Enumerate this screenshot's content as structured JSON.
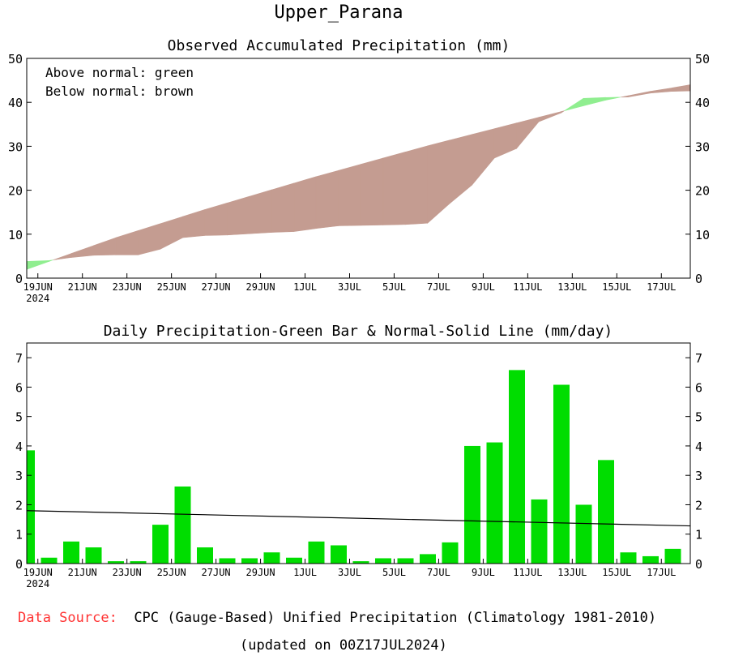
{
  "page_title": "Upper_Parana",
  "footer": {
    "source_label": "Data Source:",
    "source_text": "CPC (Gauge-Based) Unified Precipitation (Climatology 1981-2010)",
    "updated": "(updated on 00Z17JUL2024)"
  },
  "colors": {
    "above": "#90ee90",
    "below": "#c49c91",
    "bar": "#00dd00",
    "source_label": "#ff3333"
  },
  "chart_data": [
    {
      "type": "area",
      "title": "Observed Accumulated Precipitation (mm)",
      "legend_note": [
        "Above normal: green",
        "Below normal: brown"
      ],
      "ylim": [
        0,
        50
      ],
      "yticks": [
        0,
        10,
        20,
        30,
        40,
        50
      ],
      "xlim": [
        0,
        29.8
      ],
      "x_ticks": [
        {
          "x": 0.5,
          "label": "19JUN",
          "sub": "2024"
        },
        {
          "x": 2.5,
          "label": "21JUN"
        },
        {
          "x": 4.5,
          "label": "23JUN"
        },
        {
          "x": 6.5,
          "label": "25JUN"
        },
        {
          "x": 8.5,
          "label": "27JUN"
        },
        {
          "x": 10.5,
          "label": "29JUN"
        },
        {
          "x": 12.5,
          "label": "1JUL"
        },
        {
          "x": 14.5,
          "label": "3JUL"
        },
        {
          "x": 16.5,
          "label": "5JUL"
        },
        {
          "x": 18.5,
          "label": "7JUL"
        },
        {
          "x": 20.5,
          "label": "9JUL"
        },
        {
          "x": 22.5,
          "label": "11JUL"
        },
        {
          "x": 24.5,
          "label": "13JUL"
        },
        {
          "x": 26.5,
          "label": "15JUL"
        },
        {
          "x": 28.5,
          "label": "17JUL"
        }
      ],
      "series": [
        {
          "name": "observed",
          "x": [
            0,
            1,
            2,
            3,
            4,
            5,
            6,
            7,
            8,
            9,
            10,
            11,
            12,
            13,
            14,
            15,
            16,
            17,
            18,
            19,
            20,
            21,
            22,
            23,
            24,
            25,
            26,
            27,
            28,
            29,
            29.8
          ],
          "values": [
            3.8,
            4.0,
            4.7,
            5.2,
            5.3,
            5.3,
            6.6,
            9.2,
            9.7,
            9.8,
            10.1,
            10.4,
            10.6,
            11.3,
            11.9,
            12.0,
            12.1,
            12.2,
            12.5,
            17.0,
            21.2,
            27.3,
            29.5,
            35.6,
            37.6,
            40.9,
            41.1,
            41.2,
            42.1,
            42.5,
            42.6
          ]
        },
        {
          "name": "normal",
          "x": [
            0,
            1,
            2,
            3,
            4,
            5,
            6,
            7,
            8,
            9,
            10,
            11,
            12,
            13,
            14,
            15,
            16,
            17,
            18,
            19,
            20,
            21,
            22,
            23,
            24,
            25,
            26,
            27,
            28,
            29,
            29.8
          ],
          "values": [
            2.0,
            3.8,
            5.6,
            7.4,
            9.2,
            10.8,
            12.4,
            14.0,
            15.6,
            17.1,
            18.6,
            20.1,
            21.6,
            23.1,
            24.5,
            25.9,
            27.3,
            28.7,
            30.1,
            31.4,
            32.7,
            34.0,
            35.3,
            36.6,
            37.9,
            39.2,
            40.5,
            41.5,
            42.5,
            43.3,
            44.0
          ]
        }
      ]
    },
    {
      "type": "bar",
      "title": "Daily Precipitation-Green Bar & Normal-Solid Line (mm/day)",
      "ylim": [
        0,
        7.5
      ],
      "yticks": [
        0,
        1,
        2,
        3,
        4,
        5,
        6,
        7
      ],
      "days": [
        "18JUN",
        "19JUN",
        "20JUN",
        "21JUN",
        "22JUN",
        "23JUN",
        "24JUN",
        "25JUN",
        "26JUN",
        "27JUN",
        "28JUN",
        "29JUN",
        "30JUN",
        "1JUL",
        "2JUL",
        "3JUL",
        "4JUL",
        "5JUL",
        "6JUL",
        "7JUL",
        "8JUL",
        "9JUL",
        "10JUL",
        "11JUL",
        "12JUL",
        "13JUL",
        "14JUL",
        "15JUL",
        "16JUL",
        "17JUL"
      ],
      "values": [
        3.85,
        0.2,
        0.75,
        0.55,
        0.08,
        0.08,
        1.32,
        2.62,
        0.55,
        0.18,
        0.18,
        0.38,
        0.2,
        0.75,
        0.62,
        0.08,
        0.18,
        0.18,
        0.32,
        0.72,
        4.0,
        4.12,
        6.58,
        2.18,
        6.08,
        2.0,
        3.52,
        0.38,
        0.25,
        0.5
      ],
      "normal_line": {
        "x": [
          0,
          29.8
        ],
        "values": [
          1.8,
          1.28
        ]
      }
    }
  ]
}
